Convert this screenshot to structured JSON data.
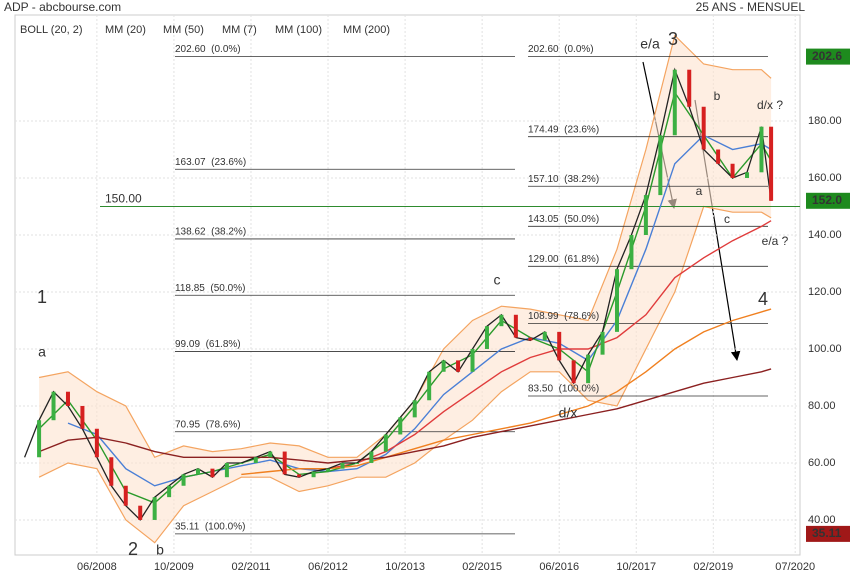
{
  "header": {
    "title": "ADP - abcbourse.com",
    "period": "25 ANS - MENSUEL"
  },
  "chart_data": {
    "type": "line",
    "xlim": [
      "2007-01",
      "2020-08"
    ],
    "xticks": [
      {
        "value": "2008-06",
        "label": "06/2008"
      },
      {
        "value": "2009-10",
        "label": "10/2009"
      },
      {
        "value": "2011-02",
        "label": "02/2011"
      },
      {
        "value": "2012-06",
        "label": "06/2012"
      },
      {
        "value": "2013-10",
        "label": "10/2013"
      },
      {
        "value": "2015-02",
        "label": "02/2015"
      },
      {
        "value": "2016-06",
        "label": "06/2016"
      },
      {
        "value": "2017-10",
        "label": "10/2017"
      },
      {
        "value": "2019-02",
        "label": "02/2019"
      },
      {
        "value": "2020-07",
        "label": "07/2020"
      }
    ],
    "ylim": [
      27.7,
      217.2
    ],
    "yticks": [
      {
        "value": 40,
        "label": "40.00"
      },
      {
        "value": 60,
        "label": "60.00"
      },
      {
        "value": 80,
        "label": "80.00"
      },
      {
        "value": 100,
        "label": "100.00"
      },
      {
        "value": 120,
        "label": "120.00"
      },
      {
        "value": 140,
        "label": "140.00"
      },
      {
        "value": 160,
        "label": "160.00"
      },
      {
        "value": 180,
        "label": "180.00"
      }
    ],
    "grid": true,
    "price": {
      "color": "#2e7d32",
      "x": [
        "2007-03",
        "2007-06",
        "2007-09",
        "2007-12",
        "2008-03",
        "2008-06",
        "2008-09",
        "2008-12",
        "2009-03",
        "2009-06",
        "2009-09",
        "2009-12",
        "2010-03",
        "2010-06",
        "2010-09",
        "2010-12",
        "2011-03",
        "2011-06",
        "2011-09",
        "2011-12",
        "2012-03",
        "2012-06",
        "2012-09",
        "2012-12",
        "2013-03",
        "2013-06",
        "2013-09",
        "2013-12",
        "2014-03",
        "2014-06",
        "2014-09",
        "2014-12",
        "2015-03",
        "2015-06",
        "2015-09",
        "2015-12",
        "2016-03",
        "2016-06",
        "2016-09",
        "2016-12",
        "2017-03",
        "2017-06",
        "2017-09",
        "2017-12",
        "2018-03",
        "2018-06",
        "2018-09",
        "2018-12",
        "2019-03",
        "2019-06",
        "2019-09",
        "2019-12",
        "2020-02"
      ],
      "values": [
        62,
        75,
        85,
        80,
        72,
        62,
        52,
        45,
        40,
        48,
        52,
        56,
        58,
        55,
        60,
        60,
        62,
        64,
        56,
        55,
        57,
        58,
        60,
        60,
        64,
        70,
        76,
        82,
        92,
        96,
        92,
        100,
        108,
        112,
        104,
        103,
        106,
        96,
        88,
        98,
        106,
        128,
        140,
        154,
        175,
        198,
        185,
        170,
        165,
        160,
        162,
        178,
        152
      ]
    },
    "bollinger": {
      "name": "BOLL (20, 2)",
      "color": "#f4a460",
      "upper": [
        90,
        92,
        85,
        80,
        62,
        66,
        64,
        65,
        67,
        66,
        62,
        62,
        70,
        82,
        100,
        110,
        115,
        114,
        112,
        110,
        135,
        170,
        210,
        200,
        198,
        198,
        195
      ],
      "lower": [
        55,
        60,
        58,
        40,
        32,
        45,
        50,
        55,
        55,
        50,
        52,
        55,
        55,
        60,
        68,
        75,
        85,
        92,
        92,
        82,
        80,
        100,
        120,
        150,
        148,
        148,
        146
      ]
    },
    "x": [
      "2007-06",
      "2007-12",
      "2008-06",
      "2008-12",
      "2009-06",
      "2009-12",
      "2010-06",
      "2010-12",
      "2011-06",
      "2011-12",
      "2012-06",
      "2012-12",
      "2013-06",
      "2013-12",
      "2014-06",
      "2014-12",
      "2015-06",
      "2015-12",
      "2016-06",
      "2016-12",
      "2017-06",
      "2017-12",
      "2018-06",
      "2018-12",
      "2019-06",
      "2019-12",
      "2020-02"
    ],
    "series": [
      {
        "name": "MM (20)",
        "color": "#4a7fd6",
        "values": [
          null,
          74,
          70,
          58,
          52,
          55,
          57,
          59,
          61,
          58,
          57,
          58,
          63,
          72,
          84,
          92,
          100,
          104,
          102,
          96,
          110,
          135,
          165,
          175,
          170,
          172,
          170
        ]
      },
      {
        "name": "MM (50)",
        "color": "#e03c3c",
        "values": [
          null,
          null,
          null,
          null,
          null,
          null,
          null,
          null,
          null,
          58,
          58,
          60,
          64,
          70,
          78,
          85,
          92,
          97,
          100,
          100,
          104,
          112,
          125,
          132,
          138,
          143,
          145
        ]
      },
      {
        "name": "MM (7)",
        "color": "#2a9a2a",
        "values": [
          72,
          82,
          68,
          50,
          46,
          55,
          57,
          60,
          63,
          56,
          57,
          60,
          68,
          80,
          93,
          98,
          110,
          104,
          100,
          92,
          120,
          150,
          190,
          175,
          160,
          172,
          166
        ]
      },
      {
        "name": "MM (100)",
        "color": "#f08020",
        "values": [
          null,
          null,
          null,
          null,
          null,
          null,
          null,
          56,
          57,
          58,
          58,
          59,
          62,
          65,
          68,
          70,
          72,
          74,
          77,
          80,
          85,
          92,
          100,
          106,
          110,
          113,
          114
        ]
      },
      {
        "name": "MM (200)",
        "color": "#8b2020",
        "values": [
          64,
          68,
          69,
          67,
          64,
          62,
          62,
          62,
          62,
          61,
          60,
          61,
          62,
          64,
          66,
          69,
          71,
          73,
          75,
          77,
          79,
          82,
          85,
          88,
          90,
          92,
          93
        ]
      }
    ],
    "fib_left": [
      {
        "value": 202.6,
        "label": "202.60  (0.0%)"
      },
      {
        "value": 163.07,
        "label": "163.07  (23.6%)"
      },
      {
        "value": 138.62,
        "label": "138.62  (38.2%)"
      },
      {
        "value": 118.85,
        "label": "118.85  (50.0%)"
      },
      {
        "value": 99.09,
        "label": "99.09  (61.8%)"
      },
      {
        "value": 70.95,
        "label": "70.95  (78.6%)"
      },
      {
        "value": 35.11,
        "label": "35.11  (100.0%)"
      }
    ],
    "fib_right": [
      {
        "value": 202.6,
        "label": "202.60  (0.0%)"
      },
      {
        "value": 174.49,
        "label": "174.49  (23.6%)"
      },
      {
        "value": 157.1,
        "label": "157.10  (38.2%)"
      },
      {
        "value": 143.05,
        "label": "143.05  (50.0%)"
      },
      {
        "value": 129.0,
        "label": "129.00  (61.8%)"
      },
      {
        "value": 108.99,
        "label": "108.99  (78.6%)"
      },
      {
        "value": 83.5,
        "label": "83.50  (100.0%)"
      }
    ],
    "level_line": {
      "value": 150,
      "label": "150.00",
      "color": "#2e8b2e"
    },
    "price_boxes": [
      {
        "value": 202.6,
        "label": "202.6",
        "color": "#1e8a1e"
      },
      {
        "value": 152.0,
        "label": "152.0",
        "color": "#1e8a1e"
      },
      {
        "value": 35.11,
        "label": "35.11",
        "color": "#a01818"
      }
    ],
    "annotations": [
      {
        "text": "1",
        "color": "#111"
      },
      {
        "text": "a",
        "color": "#2a2a8a"
      },
      {
        "text": "2",
        "color": "#111"
      },
      {
        "text": "b",
        "color": "#2a2a8a"
      },
      {
        "text": "c",
        "color": "#2a2a8a"
      },
      {
        "text": "d/x",
        "color": "#2a2a8a"
      },
      {
        "text": "e/a",
        "color": "#2a2a8a"
      },
      {
        "text": "3",
        "color": "#111"
      },
      {
        "text": "b",
        "color": "#a01818"
      },
      {
        "text": "d/x ?",
        "color": "#a01818"
      },
      {
        "text": "a",
        "color": "#a01818"
      },
      {
        "text": "c",
        "color": "#a01818"
      },
      {
        "text": "e/a ?",
        "color": "#a01818"
      },
      {
        "text": "4",
        "color": "#111"
      }
    ]
  }
}
